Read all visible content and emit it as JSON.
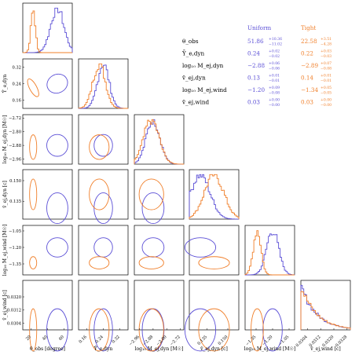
{
  "colors": {
    "uniform": "#5b4fd6",
    "tight": "#f07f2a"
  },
  "chart_data": {
    "type": "corner",
    "parameters": [
      {
        "key": "theta",
        "label": "θ_obs [degree]",
        "ticks": [
          "20",
          "40",
          "60"
        ],
        "lim": [
          10,
          70
        ]
      },
      {
        "key": "ye",
        "label": "Ȳ_e,dyn",
        "ticks": [
          "0.16",
          "0.24",
          "0.32"
        ],
        "lim": [
          0.12,
          0.36
        ]
      },
      {
        "key": "md",
        "label": "log₁₀ M_ej,dyn [M☉]",
        "ticks": [
          "−2.96",
          "−2.88",
          "−2.80",
          "−2.72"
        ],
        "lim": [
          -2.99,
          -2.7
        ]
      },
      {
        "key": "vd",
        "label": "v̄_ej,dyn [c]",
        "ticks": [
          "0.135",
          "0.150"
        ],
        "lim": [
          0.122,
          0.158
        ]
      },
      {
        "key": "mw",
        "label": "log₁₀ M_ej,wind [M☉]",
        "ticks": [
          "−1.35",
          "−1.20",
          "−1.05"
        ],
        "lim": [
          -1.45,
          -1.0
        ]
      },
      {
        "key": "vw",
        "label": "v̄_ej,wind [c]",
        "ticks": [
          "0.0304",
          "0.0312",
          "0.0320",
          "0.0328"
        ],
        "lim": [
          0.03,
          0.033
        ]
      }
    ],
    "row_tick_labels": {
      "ye": [
        "0.16",
        "0.24",
        "0.32"
      ],
      "md": [
        "−2.96",
        "−2.88",
        "−2.80",
        "−2.72"
      ],
      "vd": [
        "0.135",
        "0.150"
      ],
      "mw": [
        "−1.35",
        "−1.20",
        "−1.05"
      ],
      "vw": [
        "0.0304",
        "0.0312",
        "0.0320"
      ]
    },
    "series": [
      {
        "name": "Uniform",
        "mean": {
          "theta": 51.86,
          "ye": 0.24,
          "md": -2.88,
          "vd": 0.13,
          "mw": -1.2,
          "vw": 0.03
        },
        "sd": {
          "theta": 8,
          "ye": 0.028,
          "md": 0.04,
          "vd": 0.007,
          "mw": 0.055,
          "vw": 0.0008
        }
      },
      {
        "name": "Tight",
        "mean": {
          "theta": 22.58,
          "ye": 0.22,
          "md": -2.89,
          "vd": 0.14,
          "mw": -1.34,
          "vw": 0.03
        },
        "sd": {
          "theta": 2.7,
          "ye": 0.03,
          "md": 0.045,
          "vd": 0.007,
          "mw": 0.035,
          "vw": 0.0008
        }
      }
    ],
    "legend": {
      "headers": [
        "Uniform",
        "Tight"
      ],
      "rows": [
        {
          "label": "θ_obs",
          "uniform": "51.86",
          "uniform_up": "+10.36",
          "uniform_dn": "−11.02",
          "tight": "22.58",
          "tight_up": "+3.51",
          "tight_dn": "−4.28"
        },
        {
          "label": "Ȳ_e,dyn",
          "uniform": "0.24",
          "uniform_up": "+0.02",
          "uniform_dn": "−0.02",
          "tight": "0.22",
          "tight_up": "+0.03",
          "tight_dn": "−0.03"
        },
        {
          "label": "log₁₀ M_ej,dyn",
          "uniform": "−2.88",
          "uniform_up": "+0.06",
          "uniform_dn": "−0.06",
          "tight": "−2.89",
          "tight_up": "+0.07",
          "tight_dn": "−0.08"
        },
        {
          "label": "v̄_ej,dyn",
          "uniform": "0.13",
          "uniform_up": "+0.01",
          "uniform_dn": "−0.01",
          "tight": "0.14",
          "tight_up": "+0.01",
          "tight_dn": "−0.01"
        },
        {
          "label": "log₁₀ M_ej,wind",
          "uniform": "−1.20",
          "uniform_up": "+0.09",
          "uniform_dn": "−0.08",
          "tight": "−1.34",
          "tight_up": "+0.05",
          "tight_dn": "−0.05"
        },
        {
          "label": "v̄_ej,wind",
          "uniform": "0.03",
          "uniform_up": "+0.00",
          "uniform_dn": "−0.00",
          "tight": "0.03",
          "tight_up": "+0.00",
          "tight_dn": "−0.00"
        }
      ]
    }
  }
}
